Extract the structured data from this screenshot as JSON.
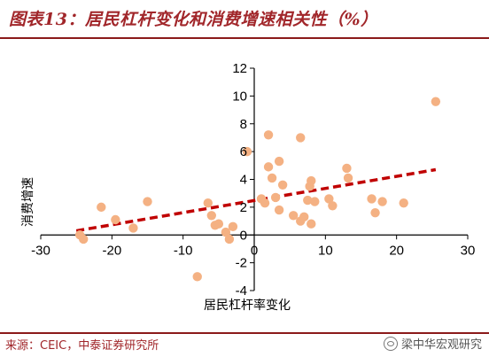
{
  "figure_title": "图表13：居民杠杆变化和消费增速相关性（%）",
  "source_note": "来源：CEIC，中泰证券研究所",
  "watermark": "梁中华宏观研究",
  "chart_data": {
    "type": "scatter",
    "title": "图表13：居民杠杆变化和消费增速相关性（%）",
    "xlabel": "居民杠杆率变化",
    "ylabel": "消费增速",
    "xlim": [
      -30,
      30
    ],
    "ylim": [
      -4,
      12
    ],
    "x_ticks": [
      -30,
      -20,
      -10,
      0,
      10,
      20,
      30
    ],
    "y_ticks": [
      -4,
      -2,
      0,
      2,
      4,
      6,
      8,
      10,
      12
    ],
    "grid": false,
    "point_color": "#f4b183",
    "trendline": {
      "x": [
        -25,
        25.5
      ],
      "y": [
        0.3,
        4.7
      ],
      "color": "#c00000",
      "style": "dashed"
    },
    "points": [
      {
        "x": -24.5,
        "y": 0.0
      },
      {
        "x": -24,
        "y": -0.3
      },
      {
        "x": -21.5,
        "y": 2.0
      },
      {
        "x": -19.5,
        "y": 1.1
      },
      {
        "x": -17,
        "y": 0.5
      },
      {
        "x": -15,
        "y": 2.4
      },
      {
        "x": -8,
        "y": -3.0
      },
      {
        "x": -6.5,
        "y": 2.3
      },
      {
        "x": -6,
        "y": 1.4
      },
      {
        "x": -5.5,
        "y": 0.7
      },
      {
        "x": -5,
        "y": 0.8
      },
      {
        "x": -4,
        "y": 0.2
      },
      {
        "x": -3.5,
        "y": -0.3
      },
      {
        "x": -3,
        "y": 0.6
      },
      {
        "x": -1,
        "y": 6.0
      },
      {
        "x": 1,
        "y": 2.6
      },
      {
        "x": 1.5,
        "y": 2.3
      },
      {
        "x": 2,
        "y": 7.2
      },
      {
        "x": 2,
        "y": 4.9
      },
      {
        "x": 2.5,
        "y": 4.1
      },
      {
        "x": 3,
        "y": 2.7
      },
      {
        "x": 3.5,
        "y": 5.3
      },
      {
        "x": 3.5,
        "y": 1.8
      },
      {
        "x": 4,
        "y": 3.6
      },
      {
        "x": 5.5,
        "y": 1.4
      },
      {
        "x": 6.5,
        "y": 1.0
      },
      {
        "x": 6.5,
        "y": 7.0
      },
      {
        "x": 7,
        "y": 1.3
      },
      {
        "x": 7.5,
        "y": 2.5
      },
      {
        "x": 7.8,
        "y": 3.5
      },
      {
        "x": 8,
        "y": 0.8
      },
      {
        "x": 8,
        "y": 3.9
      },
      {
        "x": 8.5,
        "y": 2.4
      },
      {
        "x": 10.5,
        "y": 2.6
      },
      {
        "x": 11,
        "y": 2.1
      },
      {
        "x": 13,
        "y": 4.8
      },
      {
        "x": 13.2,
        "y": 4.1
      },
      {
        "x": 16.5,
        "y": 2.6
      },
      {
        "x": 17,
        "y": 1.6
      },
      {
        "x": 18,
        "y": 2.4
      },
      {
        "x": 21,
        "y": 2.3
      },
      {
        "x": 25.5,
        "y": 9.6
      }
    ]
  }
}
